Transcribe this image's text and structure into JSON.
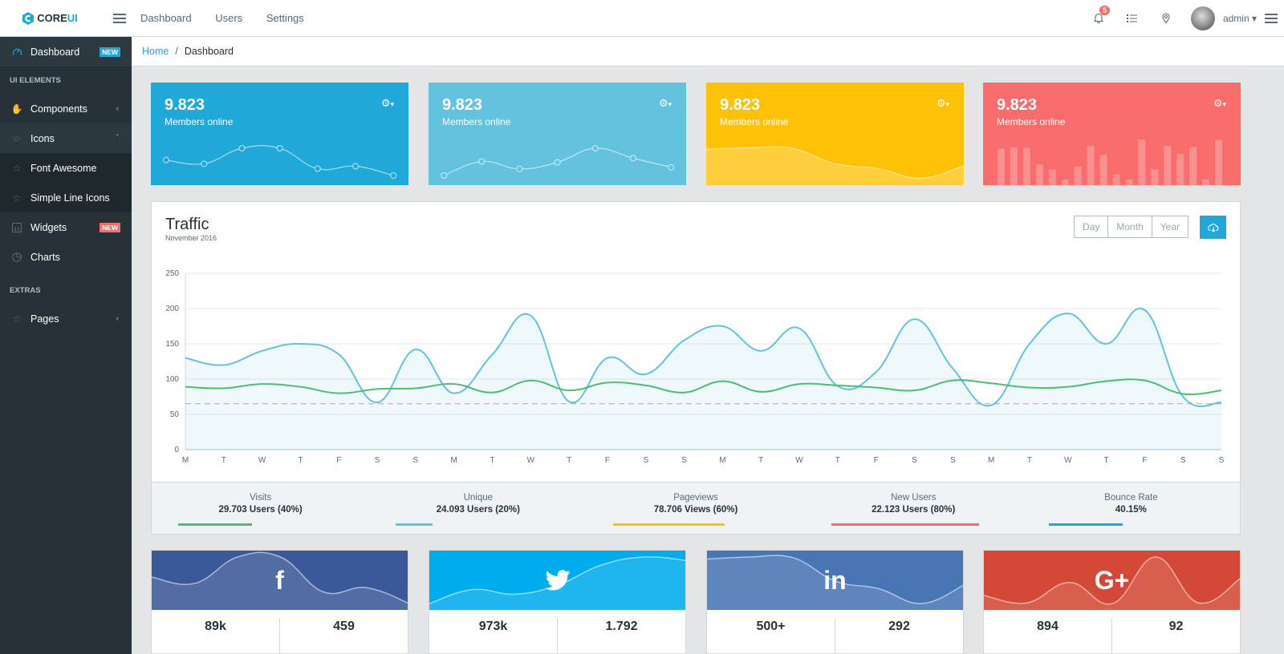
{
  "header": {
    "brand_core": "CORE",
    "brand_ui": "UI",
    "nav": [
      "Dashboard",
      "Users",
      "Settings"
    ],
    "notification_count": "5",
    "user_name": "admin"
  },
  "sidebar": {
    "items": [
      {
        "label": "Dashboard",
        "icon": "speedometer-icon",
        "badge": "NEW",
        "badge_color": "#20a8d8"
      },
      {
        "title": "UI ELEMENTS"
      },
      {
        "label": "Components",
        "icon": "puzzle-icon",
        "caret": "‹"
      },
      {
        "label": "Icons",
        "icon": "star-icon",
        "caret": "ˇ"
      },
      {
        "label": "Font Awesome",
        "icon": "star-icon"
      },
      {
        "label": "Simple Line Icons",
        "icon": "star-icon"
      },
      {
        "label": "Widgets",
        "icon": "calculator-icon",
        "badge": "NEW",
        "badge_color": "#f86c6b"
      },
      {
        "label": "Charts",
        "icon": "pie-chart-icon"
      },
      {
        "title": "EXTRAS"
      },
      {
        "label": "Pages",
        "icon": "star-icon",
        "caret": "‹"
      }
    ]
  },
  "breadcrumb": {
    "home": "Home",
    "current": "Dashboard",
    "separator": "/"
  },
  "stat_cards": [
    {
      "value": "9.823",
      "label": "Members online",
      "color": "#20a8d8",
      "type": "line-dots",
      "data": [
        65,
        59,
        84,
        84,
        51,
        55,
        40
      ]
    },
    {
      "value": "9.823",
      "label": "Members online",
      "color": "#63c2de",
      "type": "line-dots",
      "data": [
        1,
        18,
        9,
        17,
        34,
        22,
        11
      ]
    },
    {
      "value": "9.823",
      "label": "Members online",
      "color": "#ffc107",
      "type": "area",
      "data": [
        78,
        81,
        80,
        45,
        34,
        12,
        40
      ]
    },
    {
      "value": "9.823",
      "label": "Members online",
      "color": "#f86c6b",
      "type": "bar",
      "data": [
        78,
        81,
        80,
        45,
        34,
        12,
        40,
        85,
        65,
        23,
        12,
        98,
        34,
        84,
        67,
        82,
        12,
        97
      ]
    }
  ],
  "traffic": {
    "title": "Traffic",
    "subtitle": "November 2016",
    "range_buttons": [
      "Day",
      "Month",
      "Year"
    ],
    "download_icon": "cloud-download-icon",
    "stats": [
      {
        "label": "Visits",
        "value": "29.703 Users (40%)",
        "color": "#4dbd74",
        "percent": 40
      },
      {
        "label": "Unique",
        "value": "24.093 Users (20%)",
        "color": "#63c2de",
        "percent": 20
      },
      {
        "label": "Pageviews",
        "value": "78.706 Views (60%)",
        "color": "#ffc107",
        "percent": 60
      },
      {
        "label": "New Users",
        "value": "22.123 Users (80%)",
        "color": "#f86c6b",
        "percent": 80
      },
      {
        "label": "Bounce Rate",
        "value": "40.15%",
        "color": "#20a8d8",
        "percent": 40
      }
    ]
  },
  "chart_data": {
    "type": "line",
    "title": "Traffic",
    "categories": [
      "M",
      "T",
      "W",
      "T",
      "F",
      "S",
      "S",
      "M",
      "T",
      "W",
      "T",
      "F",
      "S",
      "S",
      "M",
      "T",
      "W",
      "T",
      "F",
      "S",
      "S",
      "M",
      "T",
      "W",
      "T",
      "F",
      "S",
      "S"
    ],
    "ylim": [
      0,
      250
    ],
    "yticks": [
      "0",
      "50",
      "100",
      "150",
      "200",
      "250"
    ],
    "grid": true,
    "series": [
      {
        "name": "series-1",
        "color": "#63c2de",
        "fill": true,
        "values": [
          130,
          120,
          140,
          150,
          135,
          67,
          142,
          80,
          135,
          190,
          68,
          130,
          107,
          155,
          175,
          140,
          172,
          90,
          110,
          185,
          115,
          63,
          150,
          193,
          150,
          198,
          75,
          67
        ]
      },
      {
        "name": "series-2",
        "color": "#4dbd74",
        "fill": false,
        "values": [
          89,
          87,
          93,
          89,
          80,
          86,
          87,
          93,
          81,
          98,
          84,
          95,
          91,
          81,
          97,
          82,
          93,
          91,
          88,
          84,
          98,
          94,
          88,
          89,
          97,
          98,
          79,
          84
        ]
      },
      {
        "name": "series-3",
        "color": "#f86c6b",
        "dashed": true,
        "values": [
          65,
          65,
          65,
          65,
          65,
          65,
          65,
          65,
          65,
          65,
          65,
          65,
          65,
          65,
          65,
          65,
          65,
          65,
          65,
          65,
          65,
          65,
          65,
          65,
          65,
          65,
          65,
          65
        ]
      }
    ]
  },
  "social": [
    {
      "network": "facebook",
      "logo": "f",
      "color": "#3b5998",
      "values": [
        "89k",
        "459"
      ],
      "wave": [
        65,
        59,
        84,
        84,
        51,
        55,
        40
      ]
    },
    {
      "network": "twitter",
      "logo": "twitter-bird",
      "color": "#00aced",
      "values": [
        "973k",
        "1.792"
      ],
      "wave": [
        1,
        13,
        9,
        17,
        34,
        41,
        38
      ]
    },
    {
      "network": "linkedin",
      "logo": "in",
      "color": "#4875b4",
      "values": [
        "500+",
        "292"
      ],
      "wave": [
        78,
        81,
        80,
        45,
        34,
        12,
        40
      ]
    },
    {
      "network": "google-plus",
      "logo": "G+",
      "color": "#d34836",
      "values": [
        "894",
        "92"
      ],
      "wave": [
        35,
        23,
        56,
        22,
        97,
        23,
        64
      ]
    }
  ]
}
